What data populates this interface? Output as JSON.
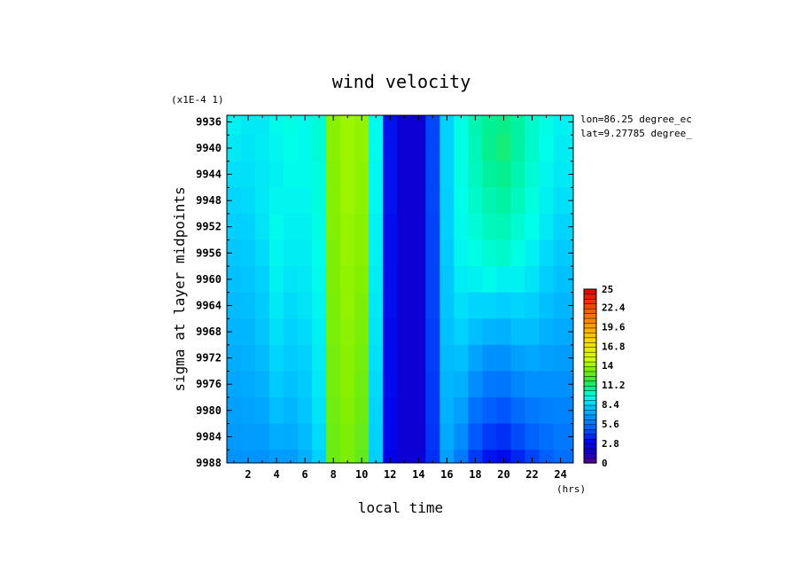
{
  "chart_data": {
    "type": "heatmap",
    "title": "wind velocity",
    "xlabel": "local time",
    "ylabel": "sigma at layer midpoints",
    "x_units": "(hrs)",
    "y_scale_note": "(x1E-4 1)",
    "annotations": [
      "lon=86.25 degree_ec",
      "lat=9.27785 degree_"
    ],
    "xlim": [
      0.5,
      24.9
    ],
    "ylim": [
      9935,
      9988
    ],
    "y_inverted": true,
    "xticks": [
      2,
      4,
      6,
      8,
      10,
      12,
      14,
      16,
      18,
      20,
      22,
      24
    ],
    "yticks": [
      9936,
      9940,
      9944,
      9948,
      9952,
      9956,
      9960,
      9964,
      9968,
      9972,
      9976,
      9980,
      9984,
      9988
    ],
    "colorbar": {
      "range": [
        0,
        25
      ],
      "tick_labels": [
        "0",
        "2.8",
        "5.6",
        "8.4",
        "11.2",
        "14",
        "16.8",
        "19.6",
        "22.4",
        "25"
      ]
    },
    "x": [
      1,
      2,
      3,
      4,
      5,
      6,
      7,
      8,
      9,
      10,
      11,
      12,
      13,
      14,
      15,
      16,
      17,
      18,
      19,
      20,
      21,
      22,
      23,
      24
    ],
    "y": [
      9936,
      9940,
      9944,
      9948,
      9952,
      9956,
      9960,
      9964,
      9968,
      9972,
      9976,
      9980,
      9984,
      9988
    ],
    "values": [
      [
        9.2,
        9.0,
        9.0,
        9.4,
        9.6,
        9.4,
        9.8,
        13.6,
        14.0,
        13.8,
        9.4,
        3.4,
        2.0,
        2.0,
        4.5,
        8.5,
        9.6,
        10.4,
        10.8,
        11.0,
        10.6,
        10.0,
        9.6,
        9.2
      ],
      [
        9.0,
        8.9,
        9.1,
        9.3,
        9.5,
        9.4,
        9.8,
        13.6,
        14.0,
        13.8,
        9.4,
        3.4,
        2.0,
        2.0,
        4.5,
        8.5,
        9.6,
        10.3,
        10.9,
        11.2,
        10.6,
        10.0,
        9.5,
        9.1
      ],
      [
        8.8,
        8.8,
        9.0,
        9.2,
        9.4,
        9.4,
        9.7,
        13.5,
        14.0,
        13.7,
        9.3,
        3.4,
        2.0,
        2.0,
        4.5,
        8.5,
        9.6,
        10.2,
        10.7,
        10.9,
        10.4,
        9.9,
        9.3,
        9.0
      ],
      [
        8.6,
        8.7,
        9.0,
        9.3,
        9.3,
        9.3,
        9.7,
        13.5,
        14.0,
        13.7,
        9.3,
        3.4,
        2.0,
        2.0,
        4.5,
        8.4,
        9.5,
        10.0,
        10.4,
        10.6,
        10.2,
        9.7,
        9.2,
        8.8
      ],
      [
        8.4,
        8.5,
        8.9,
        9.4,
        9.2,
        9.2,
        9.6,
        13.5,
        13.9,
        13.6,
        9.2,
        3.3,
        2.0,
        2.0,
        4.4,
        8.4,
        9.4,
        9.8,
        10.2,
        10.3,
        9.9,
        9.5,
        9.0,
        8.6
      ],
      [
        8.2,
        8.3,
        8.7,
        9.3,
        9.1,
        9.1,
        9.5,
        13.4,
        13.9,
        13.6,
        9.2,
        3.3,
        2.0,
        2.0,
        4.4,
        8.3,
        9.3,
        9.6,
        9.9,
        10.0,
        9.6,
        9.2,
        8.7,
        8.3
      ],
      [
        8.0,
        8.1,
        8.5,
        9.2,
        8.9,
        9.0,
        9.4,
        13.4,
        13.8,
        13.5,
        9.1,
        3.3,
        2.0,
        2.0,
        4.4,
        8.2,
        9.1,
        9.2,
        9.4,
        9.2,
        9.2,
        8.9,
        8.4,
        8.0
      ],
      [
        7.8,
        7.9,
        8.3,
        9.0,
        8.7,
        8.9,
        9.3,
        13.3,
        13.8,
        13.4,
        9.0,
        3.3,
        2.0,
        2.0,
        4.4,
        8.1,
        8.8,
        8.6,
        8.6,
        8.4,
        8.6,
        8.4,
        8.0,
        7.7
      ],
      [
        7.6,
        7.7,
        8.1,
        8.8,
        8.5,
        8.7,
        9.2,
        13.3,
        13.7,
        13.3,
        8.9,
        3.2,
        2.0,
        2.0,
        4.3,
        8.0,
        8.5,
        7.9,
        7.6,
        7.5,
        7.9,
        7.9,
        7.5,
        7.3
      ],
      [
        7.4,
        7.5,
        7.8,
        8.6,
        8.3,
        8.5,
        9.1,
        13.2,
        13.6,
        13.2,
        8.8,
        3.2,
        2.0,
        2.0,
        4.3,
        7.8,
        8.0,
        7.1,
        6.6,
        6.5,
        7.0,
        7.2,
        7.0,
        6.9
      ],
      [
        7.2,
        7.3,
        7.5,
        8.3,
        8.0,
        8.3,
        9.0,
        13.2,
        13.6,
        13.1,
        8.7,
        3.2,
        2.0,
        2.0,
        4.2,
        7.7,
        7.5,
        6.4,
        5.8,
        5.7,
        6.2,
        6.5,
        6.5,
        6.5
      ],
      [
        7.0,
        7.1,
        7.2,
        7.9,
        7.7,
        8.1,
        8.9,
        13.1,
        13.5,
        13.0,
        8.6,
        3.1,
        2.0,
        2.0,
        4.2,
        7.5,
        7.0,
        5.6,
        5.0,
        4.8,
        5.4,
        5.8,
        6.0,
        6.1
      ],
      [
        6.8,
        6.9,
        6.9,
        7.4,
        7.3,
        7.8,
        8.7,
        13.0,
        13.4,
        12.9,
        8.5,
        3.1,
        2.0,
        2.0,
        4.1,
        7.3,
        6.4,
        4.9,
        4.2,
        4.0,
        4.6,
        5.1,
        5.5,
        5.8
      ],
      [
        6.6,
        6.7,
        6.6,
        6.9,
        6.9,
        7.5,
        8.5,
        13.0,
        13.4,
        12.8,
        8.4,
        3.0,
        2.0,
        2.0,
        4.0,
        7.0,
        5.8,
        4.2,
        3.4,
        3.2,
        3.8,
        4.4,
        5.0,
        5.5
      ]
    ]
  }
}
